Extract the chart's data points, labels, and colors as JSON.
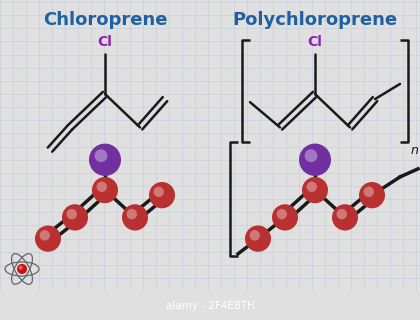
{
  "title_left": "Chloroprene",
  "title_right": "Polychloroprene",
  "title_color": "#2060a0",
  "title_fontsize": 13,
  "bg_color": "#e0e0e0",
  "grid_color": "#c0c8d8",
  "cl_color": "#9020b0",
  "carbon_color": "#b83030",
  "cl_ball_color": "#7030a0",
  "bond_color": "#1a1a1a",
  "bottom_bar_color": "#111111",
  "bottom_text": "alamy - 2F4EBTH",
  "bottom_text_color": "#ffffff"
}
